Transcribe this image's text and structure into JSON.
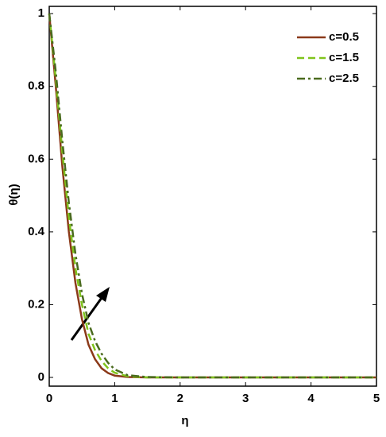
{
  "chart_data": {
    "type": "line",
    "x_label": "η",
    "y_label": "θ(η)",
    "x": [
      0,
      0.1,
      0.2,
      0.3,
      0.4,
      0.5,
      0.6,
      0.7,
      0.8,
      0.9,
      1.0,
      1.2,
      1.5,
      2,
      3,
      4,
      5
    ],
    "series": [
      {
        "name": "c=0.5",
        "color": "#8b3a1a",
        "dash": "solid",
        "values": [
          1,
          0.8,
          0.58,
          0.4,
          0.26,
          0.16,
          0.09,
          0.05,
          0.025,
          0.012,
          0.005,
          0.001,
          0,
          0,
          0,
          0,
          0
        ]
      },
      {
        "name": "c=1.5",
        "color": "#80c41c",
        "dash": "dashed",
        "values": [
          1,
          0.82,
          0.62,
          0.44,
          0.3,
          0.2,
          0.12,
          0.075,
          0.045,
          0.025,
          0.013,
          0.003,
          0,
          0,
          0,
          0,
          0
        ]
      },
      {
        "name": "c=2.5",
        "color": "#4a6b1e",
        "dash": "dashdot",
        "values": [
          1,
          0.84,
          0.65,
          0.48,
          0.34,
          0.23,
          0.15,
          0.1,
          0.065,
          0.04,
          0.022,
          0.006,
          0.001,
          0,
          0,
          0,
          0
        ]
      }
    ],
    "xlim": [
      0,
      5
    ],
    "xticks": [
      0,
      1,
      2,
      3,
      4,
      5
    ],
    "ylim": [
      -0.024,
      1.02
    ],
    "yticks": [
      0,
      0.2,
      0.4,
      0.6,
      0.8,
      1
    ],
    "legend": "upper right"
  }
}
